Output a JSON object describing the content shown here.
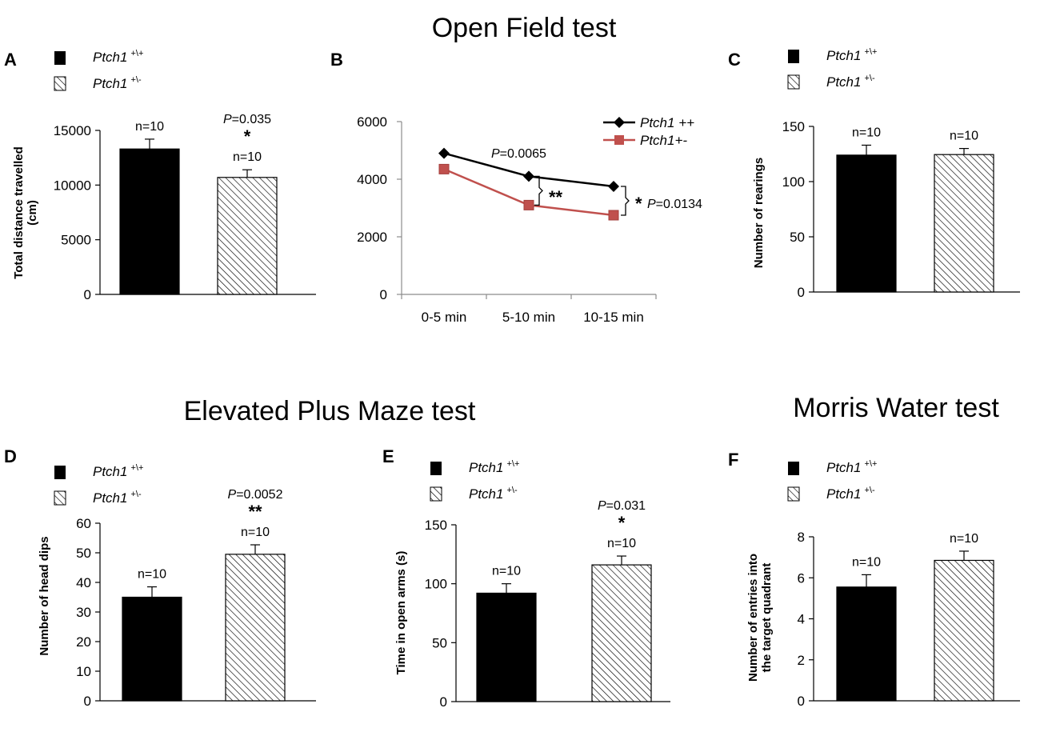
{
  "section_titles": {
    "open_field": "Open Field test",
    "elevated_plus_maze": "Elevated Plus Maze test",
    "morris_water": "Morris Water test"
  },
  "legend": {
    "wt_gene": "Ptch1",
    "wt_superscript": "+\\+",
    "het_gene": "Ptch1",
    "het_superscript": "+\\-"
  },
  "colors": {
    "wt": "#000000",
    "het": "#ffffff",
    "line_wt": "#000000",
    "line_het": "#c0504d",
    "axis": "#000000",
    "axis_light": "#8c8c8c"
  },
  "chart_data": [
    {
      "panel": "A",
      "type": "bar",
      "ylabel": "Total distance travelled (cm)",
      "ylim": [
        0,
        15000
      ],
      "yticks": [
        "0",
        "5000",
        "10000",
        "15000"
      ],
      "categories": [
        "Ptch1 +\\+",
        "Ptch1 +\\-"
      ],
      "values": [
        13300,
        10700
      ],
      "errors": [
        900,
        700
      ],
      "n_labels": [
        "n=10",
        "n=10"
      ],
      "p_label": "P=0.035",
      "significance": "*"
    },
    {
      "panel": "B",
      "type": "line",
      "ylim": [
        0,
        6000
      ],
      "yticks": [
        "0",
        "2000",
        "4000",
        "6000"
      ],
      "categories": [
        "0-5 min",
        "5-10 min",
        "10-15 min"
      ],
      "series": [
        {
          "name": "Ptch1 ++",
          "values": [
            4900,
            4100,
            3750
          ]
        },
        {
          "name": "Ptch1+-",
          "values": [
            4350,
            3100,
            2750
          ]
        }
      ],
      "annotations": [
        {
          "label": "P=0.0065"
        },
        {
          "label": "**"
        },
        {
          "label": "*"
        },
        {
          "label": "P=0.0134"
        }
      ]
    },
    {
      "panel": "C",
      "type": "bar",
      "ylabel": "Number of rearings",
      "ylim": [
        0,
        150
      ],
      "yticks": [
        "0",
        "50",
        "100",
        "150"
      ],
      "categories": [
        "Ptch1 +\\+",
        "Ptch1 +\\-"
      ],
      "values": [
        124,
        124.5
      ],
      "errors": [
        9,
        5.5
      ],
      "n_labels": [
        "n=10",
        "n=10"
      ]
    },
    {
      "panel": "D",
      "type": "bar",
      "ylabel": "Number of head dips",
      "ylim": [
        0,
        60
      ],
      "yticks": [
        "0",
        "10",
        "20",
        "30",
        "40",
        "50",
        "60"
      ],
      "categories": [
        "Ptch1 +\\+",
        "Ptch1 +\\-"
      ],
      "values": [
        35,
        49.5
      ],
      "errors": [
        3.5,
        3.2
      ],
      "n_labels": [
        "n=10",
        "n=10"
      ],
      "p_label": "P=0.0052",
      "significance": "**"
    },
    {
      "panel": "E",
      "type": "bar",
      "ylabel": "Time in open arms (s)",
      "ylim": [
        0,
        150
      ],
      "yticks": [
        "0",
        "50",
        "100",
        "150"
      ],
      "categories": [
        "Ptch1 +\\+",
        "Ptch1 +\\-"
      ],
      "values": [
        92,
        116
      ],
      "errors": [
        8,
        7.5
      ],
      "n_labels": [
        "n=10",
        "n=10"
      ],
      "p_label": "P=0.031",
      "significance": "*"
    },
    {
      "panel": "F",
      "type": "bar",
      "ylabel": "Number of entries into the target quadrant",
      "ylim": [
        0,
        8
      ],
      "yticks": [
        "0",
        "2",
        "4",
        "6",
        "8"
      ],
      "categories": [
        "Ptch1 +\\+",
        "Ptch1 +\\-"
      ],
      "values": [
        5.55,
        6.85
      ],
      "errors": [
        0.6,
        0.45
      ],
      "n_labels": [
        "n=10",
        "n=10"
      ]
    }
  ]
}
